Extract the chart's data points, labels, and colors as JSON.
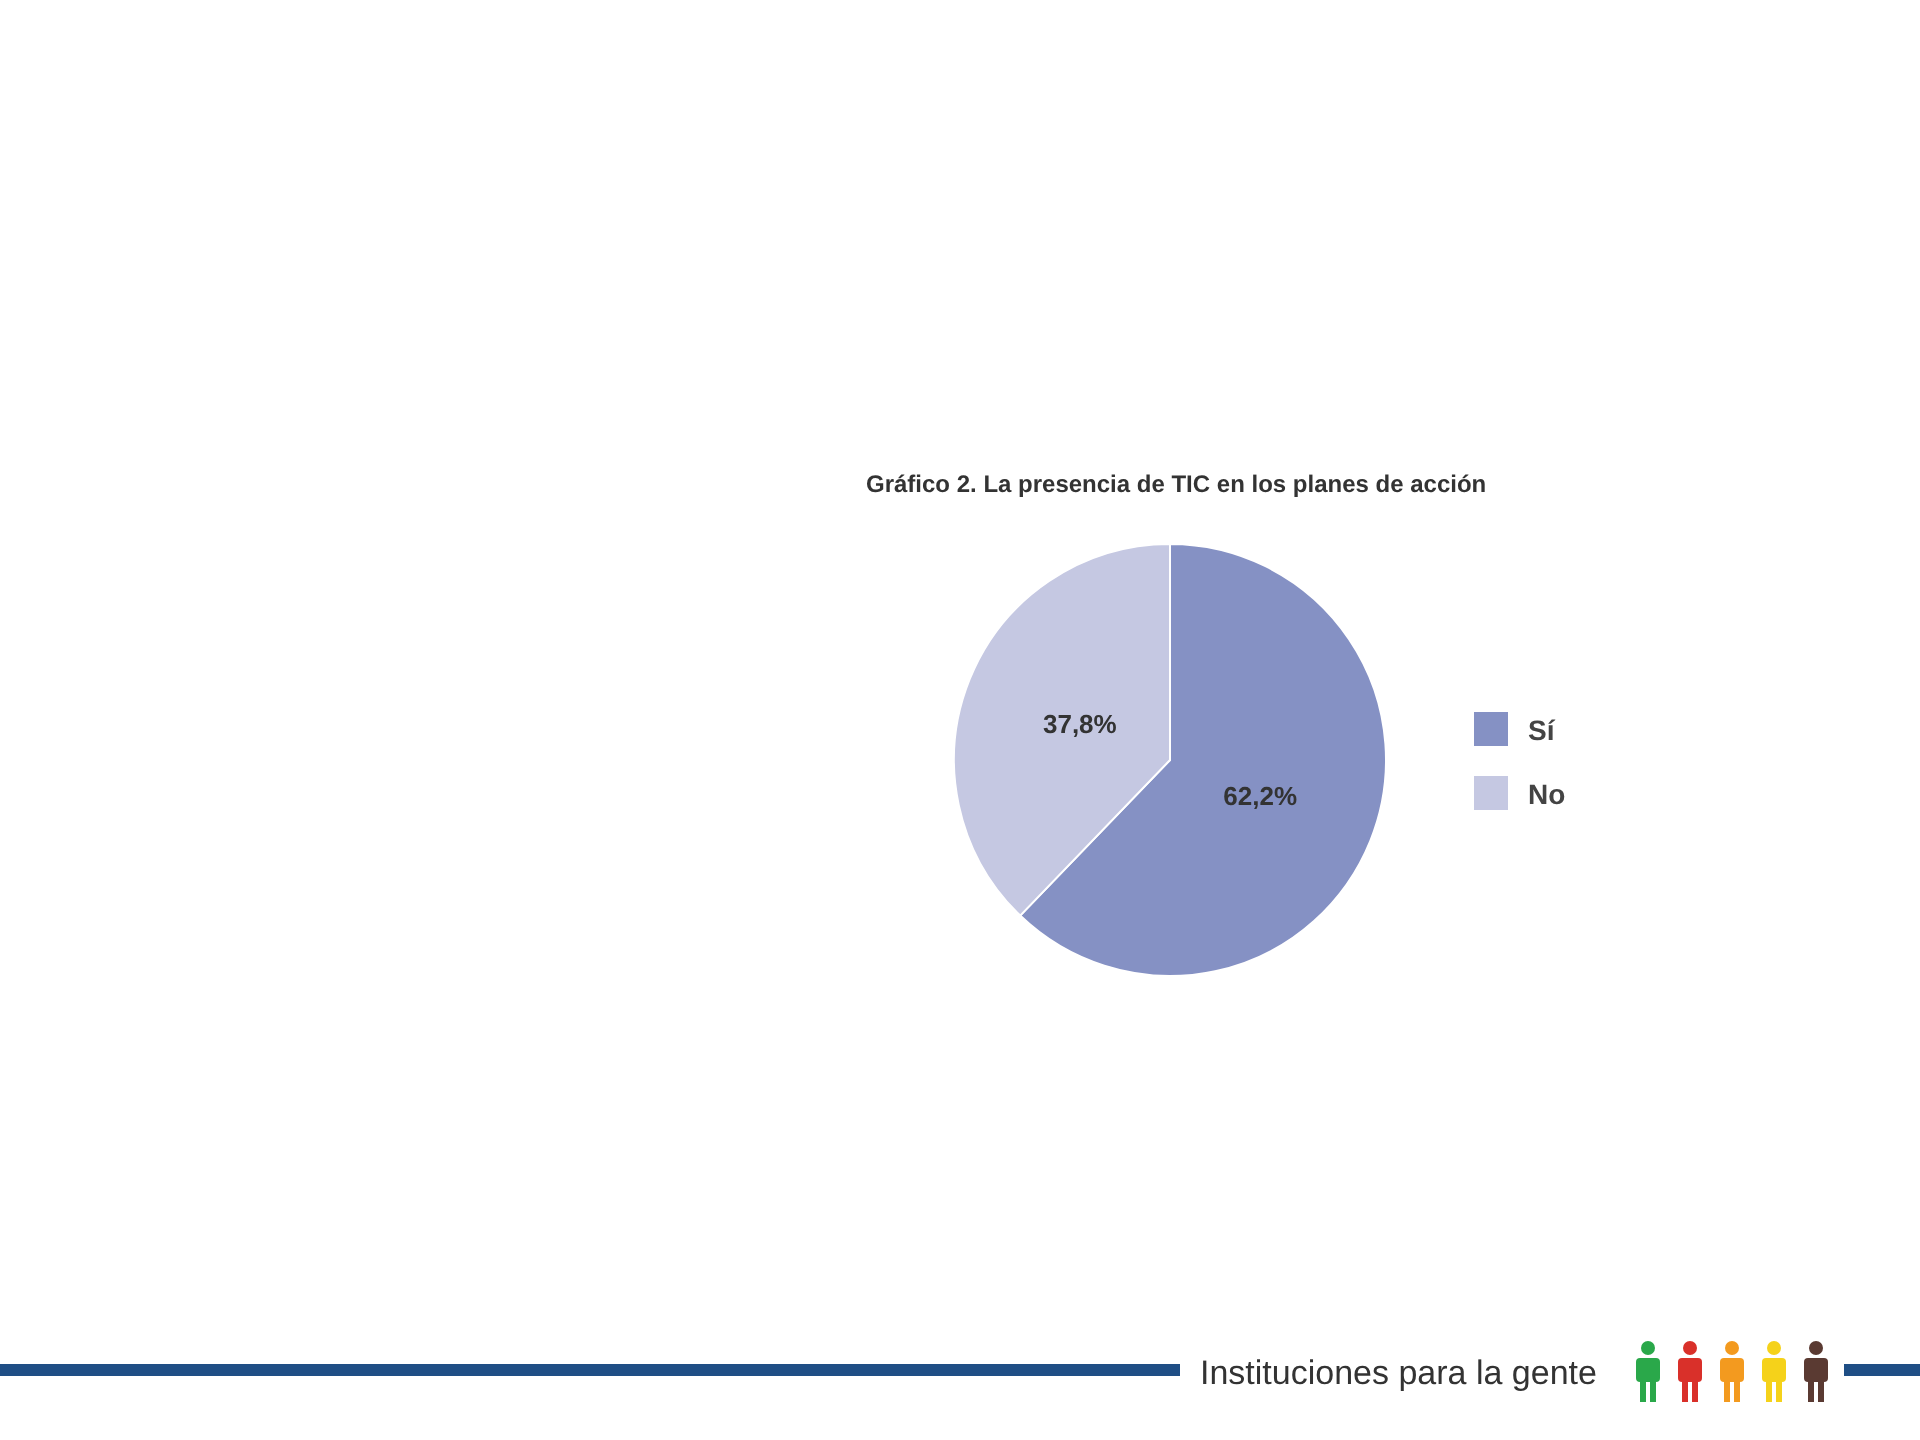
{
  "chart_data": {
    "type": "pie",
    "title": "Gráfico 2. La presencia de TIC en los planes de acción",
    "categories": [
      "Sí",
      "No"
    ],
    "values": [
      62.2,
      37.8
    ],
    "colors": [
      "#8591c4",
      "#c5c8e2"
    ],
    "value_labels": [
      "62,2%",
      "37,8%"
    ],
    "legend": "right",
    "annotations": [
      "Instituciones para la gente"
    ]
  }
}
